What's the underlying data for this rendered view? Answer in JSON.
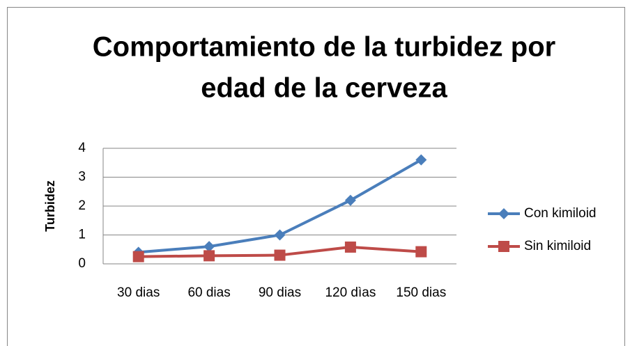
{
  "chart_data": {
    "type": "line",
    "title": [
      "Comportamiento de la turbidez por",
      "edad de la cerveza"
    ],
    "y_label": "Turbidez",
    "categories": [
      "30 dias",
      "60 dias",
      "90 dias",
      "120 dìas",
      "150 dias"
    ],
    "series": [
      {
        "name": "Con kimiloid",
        "color": "#4a7ebb",
        "marker": "diamond",
        "values": [
          0.4,
          0.6,
          1.0,
          2.2,
          3.6
        ]
      },
      {
        "name": "Sin kimiloid",
        "color": "#be4b48",
        "marker": "square",
        "values": [
          0.25,
          0.28,
          0.3,
          0.58,
          0.42
        ]
      }
    ],
    "ylim": [
      0,
      4
    ],
    "yticks": [
      0,
      1,
      2,
      3,
      4
    ],
    "grid": true,
    "legend": "right"
  }
}
